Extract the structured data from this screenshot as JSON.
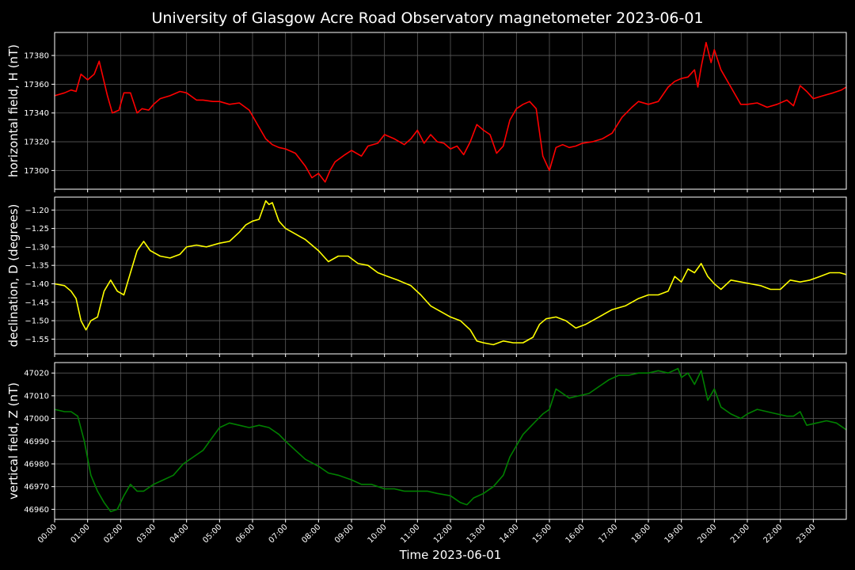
{
  "chart_data": {
    "type": "line",
    "title": "University of Glasgow Acre Road Observatory magnetometer 2023-06-01",
    "xlabel": "Time 2023-06-01",
    "x_ticks": [
      "00:00",
      "01:00",
      "02:00",
      "03:00",
      "04:00",
      "05:00",
      "06:00",
      "07:00",
      "08:00",
      "09:00",
      "10:00",
      "11:00",
      "12:00",
      "13:00",
      "14:00",
      "15:00",
      "16:00",
      "17:00",
      "18:00",
      "19:00",
      "20:00",
      "21:00",
      "22:00",
      "23:00"
    ],
    "xlim_hours": [
      0,
      24
    ],
    "grid": true,
    "background": "#000000",
    "panels": [
      {
        "ylabel": "horizontal field, H (nT)",
        "color": "#ff0000",
        "ylim": [
          17287,
          17396
        ],
        "y_ticks": [
          17300,
          17320,
          17340,
          17360,
          17380
        ],
        "y_tick_labels": [
          "17300",
          "17320",
          "17340",
          "17360",
          "17380"
        ],
        "series": {
          "x_hours": [
            0,
            0.3,
            0.5,
            0.65,
            0.8,
            1.0,
            1.2,
            1.35,
            1.6,
            1.75,
            1.95,
            2.1,
            2.3,
            2.5,
            2.65,
            2.85,
            3.0,
            3.2,
            3.5,
            3.8,
            4.0,
            4.3,
            4.5,
            4.8,
            5.0,
            5.3,
            5.6,
            5.9,
            6.2,
            6.4,
            6.6,
            6.8,
            7.0,
            7.3,
            7.6,
            7.8,
            8.0,
            8.2,
            8.35,
            8.5,
            8.8,
            9.0,
            9.3,
            9.5,
            9.8,
            10.0,
            10.3,
            10.6,
            10.8,
            11.0,
            11.2,
            11.4,
            11.6,
            11.8,
            12.0,
            12.2,
            12.4,
            12.6,
            12.8,
            13.0,
            13.2,
            13.4,
            13.6,
            13.8,
            14.0,
            14.2,
            14.4,
            14.6,
            14.8,
            15.0,
            15.2,
            15.4,
            15.6,
            15.8,
            16.0,
            16.3,
            16.6,
            16.9,
            17.2,
            17.5,
            17.7,
            18.0,
            18.3,
            18.6,
            18.8,
            19.0,
            19.2,
            19.4,
            19.5,
            19.6,
            19.75,
            19.9,
            20.0,
            20.2,
            20.5,
            20.8,
            21.0,
            21.3,
            21.6,
            21.9,
            22.2,
            22.4,
            22.6,
            22.8,
            23.0,
            23.3,
            23.6,
            23.85,
            24.0
          ],
          "values": [
            17352,
            17354,
            17356,
            17355,
            17367,
            17363,
            17367,
            17376,
            17352,
            17340,
            17342,
            17354,
            17354,
            17340,
            17343,
            17342,
            17346,
            17350,
            17352,
            17355,
            17354,
            17349,
            17349,
            17348,
            17348,
            17346,
            17347,
            17342,
            17330,
            17322,
            17318,
            17316,
            17315,
            17312,
            17303,
            17295,
            17298,
            17292,
            17300,
            17306,
            17311,
            17314,
            17310,
            17317,
            17319,
            17325,
            17322,
            17318,
            17322,
            17328,
            17319,
            17325,
            17320,
            17319,
            17315,
            17317,
            17311,
            17320,
            17332,
            17328,
            17325,
            17312,
            17317,
            17335,
            17343,
            17346,
            17348,
            17343,
            17310,
            17300,
            17316,
            17318,
            17316,
            17317,
            17319,
            17320,
            17322,
            17326,
            17337,
            17344,
            17348,
            17346,
            17348,
            17358,
            17362,
            17364,
            17365,
            17370,
            17358,
            17372,
            17389,
            17375,
            17384,
            17370,
            17358,
            17346,
            17346,
            17347,
            17344,
            17346,
            17349,
            17345,
            17359,
            17355,
            17350,
            17352,
            17354,
            17356,
            17358
          ]
        }
      },
      {
        "ylabel": "declination, D (degrees)",
        "color": "#ffff00",
        "ylim": [
          -1.59,
          -1.165
        ],
        "y_ticks": [
          -1.55,
          -1.5,
          -1.45,
          -1.4,
          -1.35,
          -1.3,
          -1.25,
          -1.2
        ],
        "y_tick_labels": [
          "−1.55",
          "−1.50",
          "−1.45",
          "−1.40",
          "−1.35",
          "−1.30",
          "−1.25",
          "−1.20"
        ],
        "series": {
          "x_hours": [
            0,
            0.3,
            0.5,
            0.65,
            0.8,
            0.95,
            1.1,
            1.3,
            1.5,
            1.7,
            1.9,
            2.1,
            2.3,
            2.5,
            2.7,
            2.9,
            3.2,
            3.5,
            3.8,
            4.0,
            4.3,
            4.6,
            5.0,
            5.3,
            5.6,
            5.8,
            6.0,
            6.2,
            6.4,
            6.5,
            6.6,
            6.8,
            7.0,
            7.3,
            7.6,
            8.0,
            8.3,
            8.6,
            8.9,
            9.2,
            9.5,
            9.8,
            10.1,
            10.4,
            10.8,
            11.1,
            11.4,
            11.7,
            12.0,
            12.3,
            12.6,
            12.8,
            13.0,
            13.3,
            13.6,
            13.9,
            14.2,
            14.5,
            14.7,
            14.9,
            15.2,
            15.5,
            15.8,
            16.1,
            16.5,
            16.9,
            17.3,
            17.7,
            18.0,
            18.3,
            18.6,
            18.8,
            19.0,
            19.2,
            19.4,
            19.6,
            19.8,
            20.0,
            20.2,
            20.5,
            20.8,
            21.1,
            21.4,
            21.7,
            22.0,
            22.3,
            22.6,
            22.9,
            23.2,
            23.5,
            23.8,
            24.0
          ],
          "values": [
            -1.4,
            -1.405,
            -1.42,
            -1.44,
            -1.5,
            -1.525,
            -1.5,
            -1.49,
            -1.42,
            -1.39,
            -1.42,
            -1.43,
            -1.37,
            -1.31,
            -1.285,
            -1.31,
            -1.325,
            -1.33,
            -1.32,
            -1.3,
            -1.295,
            -1.3,
            -1.29,
            -1.285,
            -1.26,
            -1.24,
            -1.23,
            -1.225,
            -1.175,
            -1.185,
            -1.18,
            -1.23,
            -1.25,
            -1.265,
            -1.28,
            -1.31,
            -1.34,
            -1.325,
            -1.325,
            -1.345,
            -1.35,
            -1.37,
            -1.38,
            -1.39,
            -1.405,
            -1.43,
            -1.46,
            -1.475,
            -1.49,
            -1.5,
            -1.525,
            -1.555,
            -1.56,
            -1.565,
            -1.555,
            -1.56,
            -1.56,
            -1.545,
            -1.51,
            -1.495,
            -1.49,
            -1.5,
            -1.52,
            -1.51,
            -1.49,
            -1.47,
            -1.46,
            -1.44,
            -1.43,
            -1.43,
            -1.42,
            -1.38,
            -1.395,
            -1.36,
            -1.37,
            -1.345,
            -1.38,
            -1.4,
            -1.415,
            -1.39,
            -1.395,
            -1.4,
            -1.405,
            -1.415,
            -1.415,
            -1.39,
            -1.395,
            -1.39,
            -1.38,
            -1.37,
            -1.37,
            -1.375
          ]
        }
      },
      {
        "ylabel": "vertical field, Z (nT)",
        "color": "#008000",
        "ylim": [
          46955.6,
          47024.6
        ],
        "y_ticks": [
          46960,
          46970,
          46980,
          46990,
          47000,
          47010,
          47020
        ],
        "y_tick_labels": [
          "46960",
          "46970",
          "46980",
          "46990",
          "47000",
          "47010",
          "47020"
        ],
        "series": {
          "x_hours": [
            0,
            0.3,
            0.5,
            0.7,
            0.9,
            1.1,
            1.3,
            1.5,
            1.7,
            1.9,
            2.1,
            2.3,
            2.5,
            2.7,
            3.0,
            3.3,
            3.6,
            3.9,
            4.2,
            4.5,
            4.8,
            5.0,
            5.3,
            5.6,
            5.9,
            6.2,
            6.5,
            6.8,
            7.0,
            7.3,
            7.6,
            8.0,
            8.3,
            8.6,
            9.0,
            9.3,
            9.6,
            10.0,
            10.3,
            10.6,
            11.0,
            11.3,
            11.6,
            12.0,
            12.3,
            12.5,
            12.7,
            13.0,
            13.3,
            13.6,
            13.8,
            14.0,
            14.2,
            14.4,
            14.6,
            14.8,
            15.0,
            15.2,
            15.4,
            15.6,
            15.9,
            16.2,
            16.5,
            16.8,
            17.1,
            17.4,
            17.7,
            18.0,
            18.3,
            18.6,
            18.9,
            19.0,
            19.2,
            19.4,
            19.6,
            19.8,
            20.0,
            20.2,
            20.5,
            20.8,
            21.0,
            21.3,
            21.6,
            21.9,
            22.2,
            22.4,
            22.6,
            22.8,
            23.1,
            23.4,
            23.7,
            24.0
          ],
          "values": [
            47004,
            47003,
            47003,
            47001,
            46990,
            46975,
            46968,
            46963,
            46959,
            46960,
            46966,
            46971,
            46968,
            46968,
            46971,
            46973,
            46975,
            46980,
            46983,
            46986,
            46992,
            46996,
            46998,
            46997,
            46996,
            46997,
            46996,
            46993,
            46990,
            46986,
            46982,
            46979,
            46976,
            46975,
            46973,
            46971,
            46971,
            46969,
            46969,
            46968,
            46968,
            46968,
            46967,
            46966,
            46963,
            46962,
            46965,
            46967,
            46970,
            46975,
            46983,
            46988,
            46993,
            46996,
            46999,
            47002,
            47004,
            47013,
            47011,
            47009,
            47010,
            47011,
            47014,
            47017,
            47019,
            47019,
            47020,
            47020,
            47021,
            47020,
            47022,
            47018,
            47020,
            47015,
            47021,
            47008,
            47013,
            47005,
            47002,
            47000,
            47002,
            47004,
            47003,
            47002,
            47001,
            47001,
            47003,
            46997,
            46998,
            46999,
            46998,
            46995
          ]
        }
      }
    ]
  }
}
